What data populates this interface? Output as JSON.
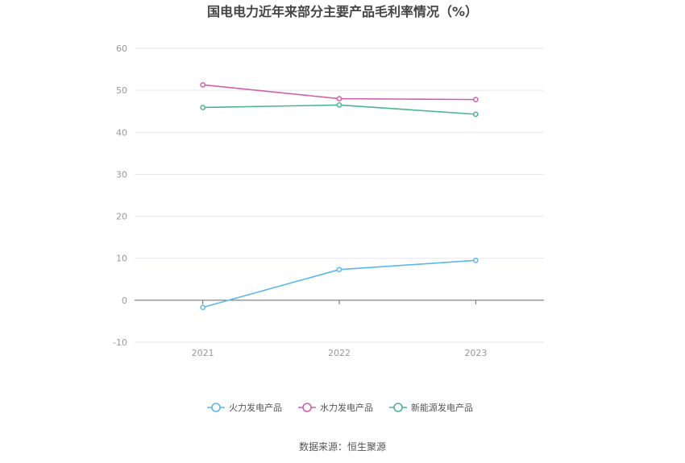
{
  "chart_data": {
    "type": "line",
    "title": "国电电力近年来部分主要产品毛利率情况（%）",
    "xlabel": "",
    "ylabel": "",
    "categories": [
      "2021",
      "2022",
      "2023"
    ],
    "ylim": [
      -10,
      60
    ],
    "yticks": [
      "60",
      "50",
      "40",
      "30",
      "20",
      "10",
      "0",
      "-10"
    ],
    "grid": true,
    "legend_position": "bottom",
    "series": [
      {
        "name": "火力发电产品",
        "values": [
          -1.7,
          7.3,
          9.5
        ],
        "color": "#5bb8ec"
      },
      {
        "name": "水力发电产品",
        "values": [
          51.3,
          48.0,
          47.8
        ],
        "color": "#d260a9"
      },
      {
        "name": "新能源发电产品",
        "values": [
          45.9,
          46.5,
          44.3
        ],
        "color": "#4bb495"
      }
    ]
  },
  "footer": {
    "source": "数据来源：恒生聚源"
  }
}
